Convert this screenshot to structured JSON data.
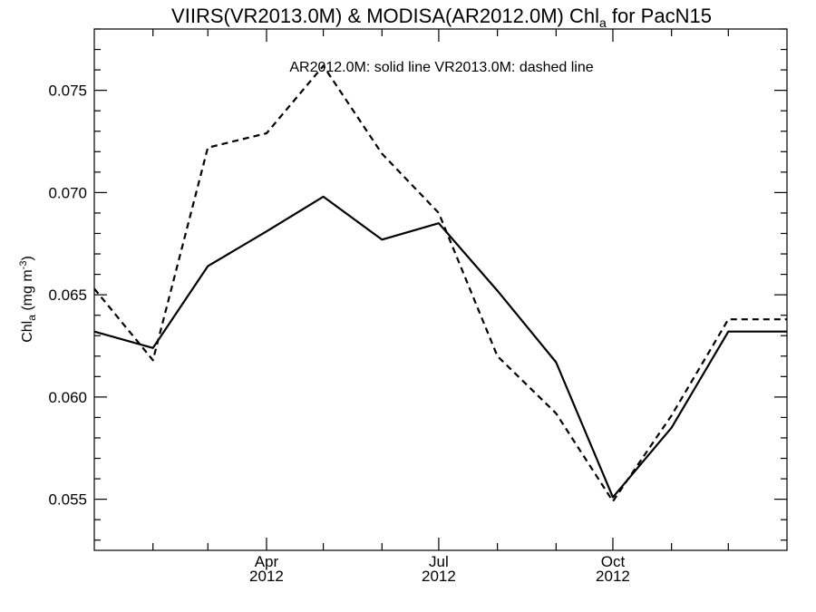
{
  "chart_data": {
    "type": "line",
    "title": "VIIRS(VR2013.0M) & MODISA(AR2012.0M)  Chl",
    "title_sub": "a",
    "title_suffix": " for PacN15",
    "annotation": "AR2012.0M: solid line   VR2013.0M: dashed line",
    "ylabel": "Chl",
    "ylabel_sub": "a",
    "ylabel_units": " (mg m",
    "ylabel_units_sup": "-3",
    "ylabel_close": ")",
    "xlim": [
      "2012-01-01",
      "2013-01-01"
    ],
    "ylim": [
      0.0525,
      0.078
    ],
    "x_ticks": [
      {
        "date": "2012-04-01",
        "line1": "Apr",
        "line2": "2012"
      },
      {
        "date": "2012-07-01",
        "line1": "Jul",
        "line2": "2012"
      },
      {
        "date": "2012-10-01",
        "line1": "Oct",
        "line2": "2012"
      }
    ],
    "y_ticks": [
      "0.055",
      "0.060",
      "0.065",
      "0.070",
      "0.075"
    ],
    "x": [
      "2012-01-01",
      "2012-02-01",
      "2012-03-01",
      "2012-04-01",
      "2012-05-01",
      "2012-06-01",
      "2012-07-01",
      "2012-08-01",
      "2012-09-01",
      "2012-10-01",
      "2012-11-01",
      "2012-12-01",
      "2013-01-01"
    ],
    "series": [
      {
        "name": "AR2012.0M",
        "style": "solid",
        "color": "#000000",
        "values": [
          0.0632,
          0.0624,
          0.0664,
          0.0681,
          0.0698,
          0.0677,
          0.0685,
          0.0652,
          0.0617,
          0.0551,
          0.0585,
          0.0632,
          0.0632
        ]
      },
      {
        "name": "VR2013.0M",
        "style": "dashed",
        "color": "#000000",
        "values": [
          0.0653,
          0.0618,
          0.0722,
          0.0729,
          0.0762,
          0.0719,
          0.069,
          0.062,
          0.0592,
          0.0549,
          0.0591,
          0.0638,
          0.0638
        ]
      }
    ],
    "grid": false,
    "legend": "annotation-top"
  }
}
